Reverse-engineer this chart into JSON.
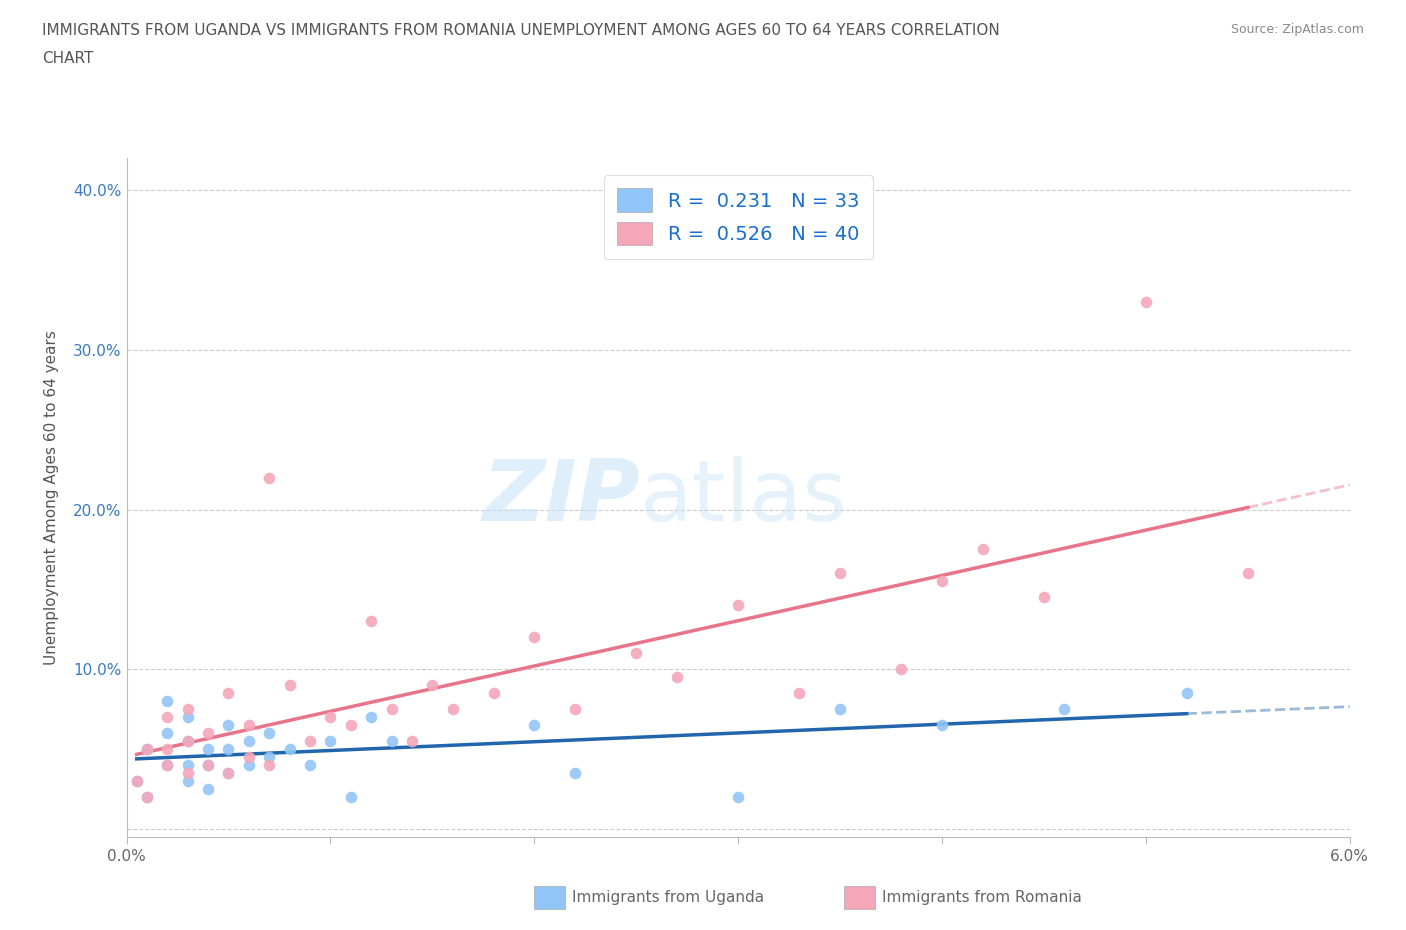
{
  "title_line1": "IMMIGRANTS FROM UGANDA VS IMMIGRANTS FROM ROMANIA UNEMPLOYMENT AMONG AGES 60 TO 64 YEARS CORRELATION",
  "title_line2": "CHART",
  "source": "Source: ZipAtlas.com",
  "ylabel": "Unemployment Among Ages 60 to 64 years",
  "xlim": [
    0.0,
    0.06
  ],
  "ylim": [
    -0.005,
    0.42
  ],
  "xticks": [
    0.0,
    0.01,
    0.02,
    0.03,
    0.04,
    0.05,
    0.06
  ],
  "xticklabels": [
    "0.0%",
    "",
    "",
    "",
    "",
    "",
    "6.0%"
  ],
  "yticks": [
    0.0,
    0.1,
    0.2,
    0.3,
    0.4
  ],
  "yticklabels": [
    "",
    "10.0%",
    "20.0%",
    "30.0%",
    "40.0%"
  ],
  "uganda_color": "#92C5F7",
  "romania_color": "#F4A7B9",
  "uganda_line_color": "#2166AC",
  "romania_line_color": "#E8748A",
  "uganda_r": 0.231,
  "uganda_n": 33,
  "romania_r": 0.526,
  "romania_n": 40,
  "legend_r_color": "#1a6fcc",
  "watermark_text": "ZIP",
  "watermark_text2": "atlas",
  "background_color": "#ffffff",
  "grid_color": "#cccccc",
  "uganda_x": [
    0.0005,
    0.001,
    0.001,
    0.002,
    0.002,
    0.002,
    0.003,
    0.003,
    0.003,
    0.003,
    0.004,
    0.004,
    0.004,
    0.005,
    0.005,
    0.005,
    0.006,
    0.006,
    0.007,
    0.007,
    0.008,
    0.009,
    0.01,
    0.011,
    0.012,
    0.013,
    0.02,
    0.022,
    0.03,
    0.035,
    0.04,
    0.046,
    0.052
  ],
  "uganda_y": [
    0.03,
    0.05,
    0.02,
    0.04,
    0.06,
    0.08,
    0.03,
    0.04,
    0.055,
    0.07,
    0.025,
    0.04,
    0.05,
    0.035,
    0.05,
    0.065,
    0.04,
    0.055,
    0.045,
    0.06,
    0.05,
    0.04,
    0.055,
    0.02,
    0.07,
    0.055,
    0.065,
    0.035,
    0.02,
    0.075,
    0.065,
    0.075,
    0.085
  ],
  "romania_x": [
    0.0005,
    0.001,
    0.001,
    0.002,
    0.002,
    0.002,
    0.003,
    0.003,
    0.003,
    0.004,
    0.004,
    0.005,
    0.005,
    0.006,
    0.006,
    0.007,
    0.007,
    0.008,
    0.009,
    0.01,
    0.011,
    0.012,
    0.013,
    0.014,
    0.015,
    0.016,
    0.018,
    0.02,
    0.022,
    0.025,
    0.027,
    0.03,
    0.033,
    0.035,
    0.038,
    0.04,
    0.042,
    0.045,
    0.05,
    0.055
  ],
  "romania_y": [
    0.03,
    0.05,
    0.02,
    0.04,
    0.07,
    0.05,
    0.035,
    0.055,
    0.075,
    0.04,
    0.06,
    0.035,
    0.085,
    0.045,
    0.065,
    0.04,
    0.22,
    0.09,
    0.055,
    0.07,
    0.065,
    0.13,
    0.075,
    0.055,
    0.09,
    0.075,
    0.085,
    0.12,
    0.075,
    0.11,
    0.095,
    0.14,
    0.085,
    0.16,
    0.1,
    0.155,
    0.175,
    0.145,
    0.33,
    0.16
  ]
}
